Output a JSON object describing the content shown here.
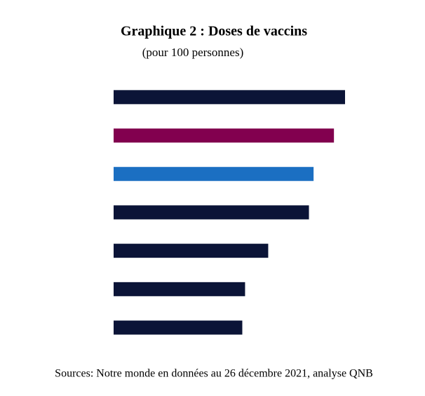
{
  "chart_data": {
    "type": "barh",
    "title": "Graphique 2 : Doses de vaccins",
    "subtitle": "(pour 100 personnes)",
    "source": "Sources: Notre monde en données au 26 décembre 2021, analyse QNB",
    "categories": [
      null,
      null,
      null,
      null,
      null,
      null,
      null
    ],
    "values": [
      250,
      238,
      216,
      211,
      167,
      142,
      139
    ],
    "colors": [
      "#0b1437",
      "#82004f",
      "#1b6fc2",
      "#0b1437",
      "#0b1437",
      "#0b1437",
      "#0b1437"
    ],
    "xlim": [
      0,
      250
    ]
  }
}
